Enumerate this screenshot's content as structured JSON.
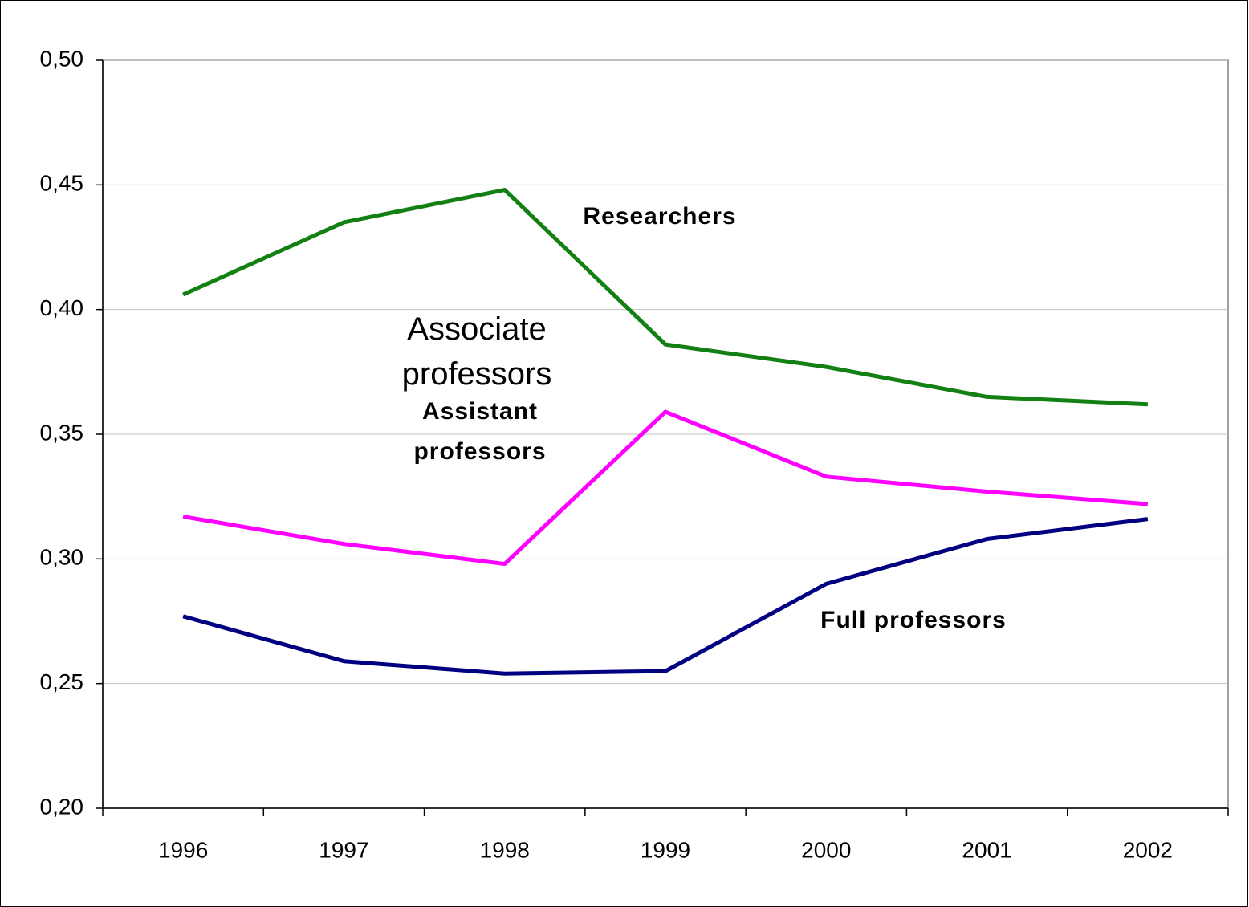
{
  "chart_data": {
    "type": "line",
    "categories": [
      "1996",
      "1997",
      "1998",
      "1999",
      "2000",
      "2001",
      "2002"
    ],
    "series": [
      {
        "name": "Researchers",
        "color": "#138013",
        "values": [
          0.406,
          0.435,
          0.448,
          0.386,
          0.377,
          0.365,
          0.362
        ]
      },
      {
        "name": "Assistant professors",
        "color": "#ff00ff",
        "values": [
          0.317,
          0.306,
          0.298,
          0.359,
          0.333,
          0.327,
          0.322
        ]
      },
      {
        "name": "Full professors",
        "color": "#000080",
        "values": [
          0.277,
          0.259,
          0.254,
          0.255,
          0.29,
          0.308,
          0.316
        ]
      }
    ],
    "annotations": [
      "Associate professors"
    ],
    "ylim": [
      0.2,
      0.5
    ],
    "yticks": [
      {
        "value": 0.2,
        "label": "0,20"
      },
      {
        "value": 0.25,
        "label": "0,25"
      },
      {
        "value": 0.3,
        "label": "0,30"
      },
      {
        "value": 0.35,
        "label": "0,35"
      },
      {
        "value": 0.4,
        "label": "0,40"
      },
      {
        "value": 0.45,
        "label": "0,45"
      },
      {
        "value": 0.5,
        "label": "0,50"
      }
    ],
    "grid": true
  }
}
